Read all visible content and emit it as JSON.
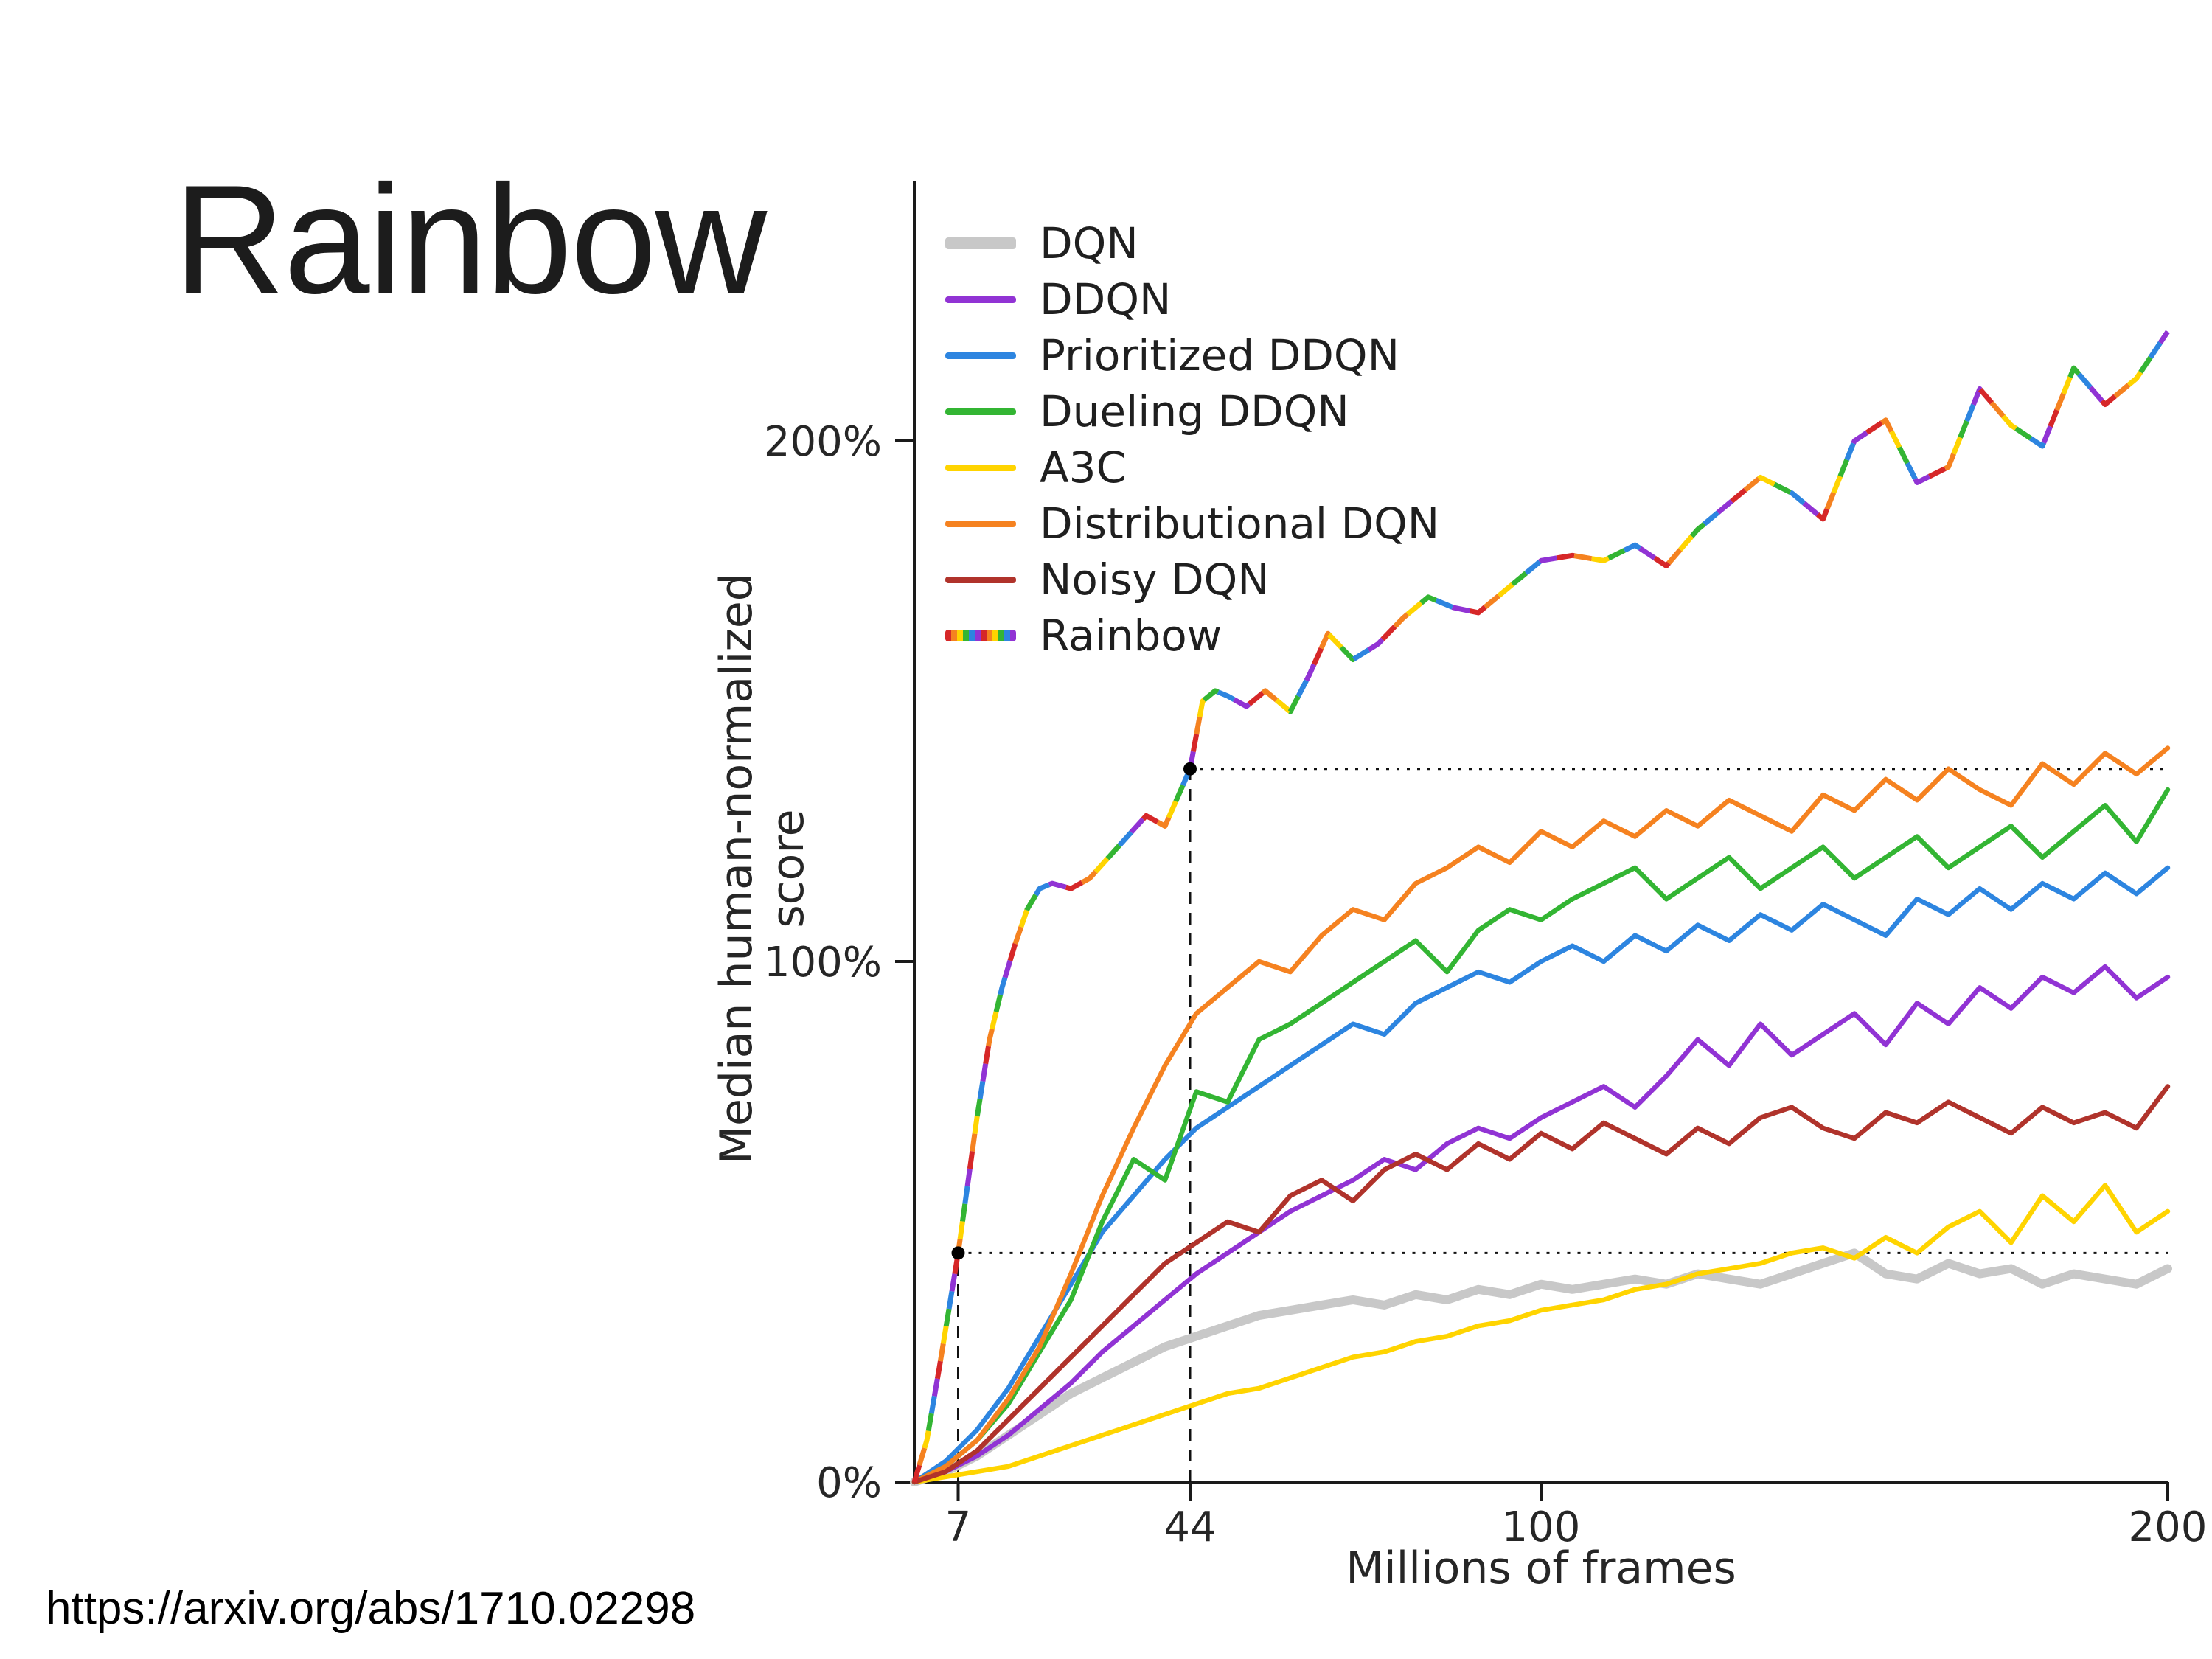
{
  "slide": {
    "title": "Rainbow",
    "source_link": "https://arxiv.org/abs/1710.02298"
  },
  "chart_data": {
    "type": "line",
    "title": "",
    "xlabel": "Millions of frames",
    "ylabel": "Median human-normalized score",
    "xlim": [
      0,
      200
    ],
    "ylim": [
      0,
      250
    ],
    "grid": false,
    "legend_position": "upper-left",
    "axis_color": "#1a1a1a",
    "annotation_color": "#111111",
    "xticks": [
      {
        "value": 7,
        "label": "7"
      },
      {
        "value": 44,
        "label": "44"
      },
      {
        "value": 100,
        "label": "100"
      },
      {
        "value": 200,
        "label": "200"
      }
    ],
    "yticks": [
      {
        "value": 0,
        "label": "0%"
      },
      {
        "value": 100,
        "label": "100%"
      },
      {
        "value": 200,
        "label": "200%"
      }
    ],
    "rainbow_segment_colors": [
      "#d62728",
      "#f58220",
      "#ffd400",
      "#33b533",
      "#2d85e0",
      "#9133d4"
    ],
    "annotations": {
      "points": [
        {
          "x": 7,
          "y": 44
        },
        {
          "x": 44,
          "y": 137
        }
      ],
      "dotted_h": [
        {
          "y": 44,
          "x1": 7,
          "x2": 200
        },
        {
          "y": 137,
          "x1": 44,
          "x2": 200
        }
      ],
      "dashed_v": [
        {
          "x": 7,
          "y1": 0,
          "y2": 44
        },
        {
          "x": 44,
          "y1": 0,
          "y2": 137
        }
      ]
    },
    "series": [
      {
        "name": "DQN",
        "color": "#c8c8c8",
        "line_width": 12,
        "x": [
          0,
          5,
          10,
          15,
          20,
          25,
          30,
          35,
          40,
          45,
          50,
          55,
          60,
          65,
          70,
          75,
          80,
          85,
          90,
          95,
          100,
          105,
          110,
          115,
          120,
          125,
          130,
          135,
          140,
          145,
          150,
          155,
          160,
          165,
          170,
          175,
          180,
          185,
          190,
          195,
          200
        ],
        "y": [
          0,
          2,
          5,
          9,
          13,
          17,
          20,
          23,
          26,
          28,
          30,
          32,
          33,
          34,
          35,
          34,
          36,
          35,
          37,
          36,
          38,
          37,
          38,
          39,
          38,
          40,
          39,
          38,
          40,
          42,
          44,
          40,
          39,
          42,
          40,
          41,
          38,
          40,
          39,
          38,
          41
        ]
      },
      {
        "name": "DDQN",
        "color": "#9133d4",
        "line_width": 6.5,
        "x": [
          0,
          5,
          10,
          15,
          20,
          25,
          30,
          35,
          40,
          45,
          50,
          55,
          60,
          65,
          70,
          75,
          80,
          85,
          90,
          95,
          100,
          105,
          110,
          115,
          120,
          125,
          130,
          135,
          140,
          145,
          150,
          155,
          160,
          165,
          170,
          175,
          180,
          185,
          190,
          195,
          200
        ],
        "y": [
          0,
          2,
          5,
          9,
          14,
          19,
          25,
          30,
          35,
          40,
          44,
          48,
          52,
          55,
          58,
          62,
          60,
          65,
          68,
          66,
          70,
          73,
          76,
          72,
          78,
          85,
          80,
          88,
          82,
          86,
          90,
          84,
          92,
          88,
          95,
          91,
          97,
          94,
          99,
          93,
          97
        ]
      },
      {
        "name": "Prioritized DDQN",
        "color": "#2d85e0",
        "line_width": 6.5,
        "x": [
          0,
          5,
          10,
          15,
          20,
          25,
          30,
          35,
          40,
          45,
          50,
          55,
          60,
          65,
          70,
          75,
          80,
          85,
          90,
          95,
          100,
          105,
          110,
          115,
          120,
          125,
          130,
          135,
          140,
          145,
          150,
          155,
          160,
          165,
          170,
          175,
          180,
          185,
          190,
          195,
          200
        ],
        "y": [
          0,
          4,
          10,
          18,
          28,
          38,
          48,
          55,
          62,
          68,
          72,
          76,
          80,
          84,
          88,
          86,
          92,
          95,
          98,
          96,
          100,
          103,
          100,
          105,
          102,
          107,
          104,
          109,
          106,
          111,
          108,
          105,
          112,
          109,
          114,
          110,
          115,
          112,
          117,
          113,
          118
        ]
      },
      {
        "name": "Dueling DDQN",
        "color": "#33b533",
        "line_width": 6.5,
        "x": [
          0,
          5,
          10,
          15,
          20,
          25,
          30,
          35,
          40,
          45,
          50,
          55,
          60,
          65,
          70,
          75,
          80,
          85,
          90,
          95,
          100,
          105,
          110,
          115,
          120,
          125,
          130,
          135,
          140,
          145,
          150,
          155,
          160,
          165,
          170,
          175,
          180,
          185,
          190,
          195,
          200
        ],
        "y": [
          0,
          3,
          8,
          15,
          25,
          35,
          50,
          62,
          58,
          75,
          73,
          85,
          88,
          92,
          96,
          100,
          104,
          98,
          106,
          110,
          108,
          112,
          115,
          118,
          112,
          116,
          120,
          114,
          118,
          122,
          116,
          120,
          124,
          118,
          122,
          126,
          120,
          125,
          130,
          123,
          133
        ]
      },
      {
        "name": "A3C",
        "color": "#ffd400",
        "line_width": 6.5,
        "x": [
          0,
          5,
          10,
          15,
          20,
          25,
          30,
          35,
          40,
          45,
          50,
          55,
          60,
          65,
          70,
          75,
          80,
          85,
          90,
          95,
          100,
          105,
          110,
          115,
          120,
          125,
          130,
          135,
          140,
          145,
          150,
          155,
          160,
          165,
          170,
          175,
          180,
          185,
          190,
          195,
          200
        ],
        "y": [
          0,
          1,
          2,
          3,
          5,
          7,
          9,
          11,
          13,
          15,
          17,
          18,
          20,
          22,
          24,
          25,
          27,
          28,
          30,
          31,
          33,
          34,
          35,
          37,
          38,
          40,
          41,
          42,
          44,
          45,
          43,
          47,
          44,
          49,
          52,
          46,
          55,
          50,
          57,
          48,
          52
        ]
      },
      {
        "name": "Distributional DQN",
        "color": "#f58220",
        "line_width": 6.5,
        "x": [
          0,
          5,
          10,
          15,
          20,
          25,
          30,
          35,
          40,
          45,
          50,
          55,
          60,
          65,
          70,
          75,
          80,
          85,
          90,
          95,
          100,
          105,
          110,
          115,
          120,
          125,
          130,
          135,
          140,
          145,
          150,
          155,
          160,
          165,
          170,
          175,
          180,
          185,
          190,
          195,
          200
        ],
        "y": [
          0,
          3,
          8,
          16,
          26,
          40,
          55,
          68,
          80,
          90,
          95,
          100,
          98,
          105,
          110,
          108,
          115,
          118,
          122,
          119,
          125,
          122,
          127,
          124,
          129,
          126,
          131,
          128,
          125,
          132,
          129,
          135,
          131,
          137,
          133,
          130,
          138,
          134,
          140,
          136,
          141
        ]
      },
      {
        "name": "Noisy DQN",
        "color": "#b0332b",
        "line_width": 6.5,
        "x": [
          0,
          5,
          10,
          15,
          20,
          25,
          30,
          35,
          40,
          45,
          50,
          55,
          60,
          65,
          70,
          75,
          80,
          85,
          90,
          95,
          100,
          105,
          110,
          115,
          120,
          125,
          130,
          135,
          140,
          145,
          150,
          155,
          160,
          165,
          170,
          175,
          180,
          185,
          190,
          195,
          200
        ],
        "y": [
          0,
          2,
          6,
          12,
          18,
          24,
          30,
          36,
          42,
          46,
          50,
          48,
          55,
          58,
          54,
          60,
          63,
          60,
          65,
          62,
          67,
          64,
          69,
          66,
          63,
          68,
          65,
          70,
          72,
          68,
          66,
          71,
          69,
          73,
          70,
          67,
          72,
          69,
          71,
          68,
          76
        ]
      },
      {
        "name": "Rainbow",
        "color": "multicolor",
        "line_width": 7,
        "x": [
          0,
          2,
          4,
          7,
          10,
          12,
          14,
          16,
          18,
          20,
          22,
          25,
          28,
          31,
          34,
          37,
          40,
          44,
          46,
          48,
          50,
          53,
          56,
          60,
          63,
          66,
          70,
          74,
          78,
          82,
          86,
          90,
          95,
          100,
          105,
          110,
          115,
          120,
          125,
          130,
          135,
          140,
          145,
          150,
          155,
          160,
          165,
          170,
          175,
          180,
          185,
          190,
          195,
          200
        ],
        "y": [
          0,
          8,
          22,
          44,
          70,
          85,
          95,
          103,
          110,
          114,
          115,
          114,
          116,
          120,
          124,
          128,
          126,
          137,
          150,
          152,
          151,
          149,
          152,
          148,
          155,
          163,
          158,
          161,
          166,
          170,
          168,
          167,
          172,
          177,
          178,
          177,
          180,
          176,
          183,
          188,
          193,
          190,
          185,
          200,
          204,
          192,
          195,
          210,
          203,
          199,
          214,
          207,
          212,
          221
        ]
      }
    ]
  }
}
